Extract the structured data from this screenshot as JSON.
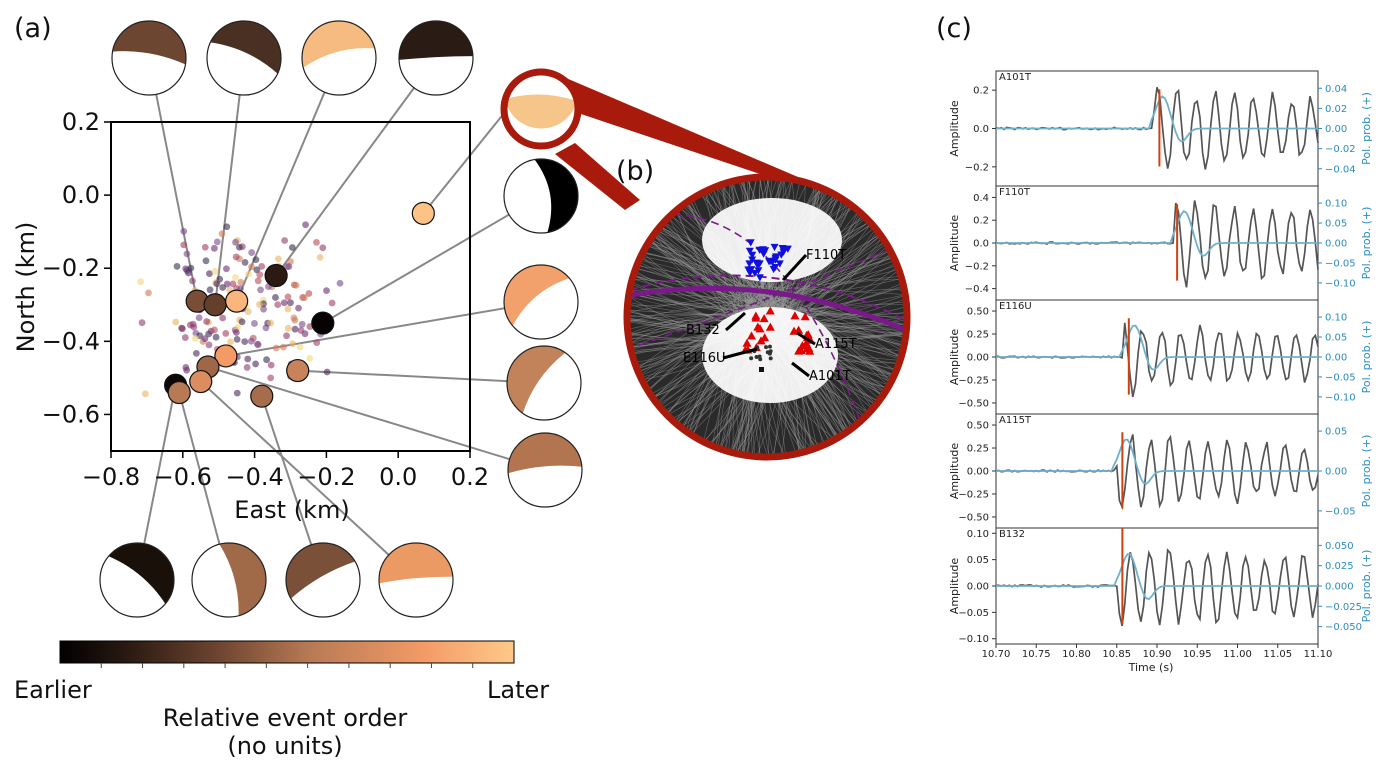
{
  "panels": {
    "a": "(a)",
    "b": "(b)",
    "c": "(c)"
  },
  "map": {
    "xlabel": "East (km)",
    "ylabel": "North (km)",
    "xticks": [
      "−0.8",
      "−0.6",
      "−0.4",
      "−0.2",
      "0.0",
      "0.2"
    ],
    "yticks": [
      "0.2",
      "0.0",
      "−0.2",
      "−0.4",
      "−0.6"
    ],
    "xlim": [
      -0.8,
      0.2
    ],
    "ylim": [
      -0.7,
      0.2
    ]
  },
  "colorbar": {
    "left": "Earlier",
    "right": "Later",
    "title_line1": "Relative event order",
    "title_line2": "(no units)"
  },
  "stereonet": {
    "stations": [
      "F110T",
      "B132",
      "E116U",
      "A115T",
      "A101T"
    ],
    "colors": {
      "up": "#e00000",
      "down": "#1010dd",
      "plane": "#7a1a8a",
      "rim": "#a81b0c"
    }
  },
  "traces": {
    "time_label": "Time (s)",
    "amp_label": "Amplitude",
    "prob_label": "Pol. prob. (+)",
    "xticks": [
      "10.70",
      "10.75",
      "10.80",
      "10.85",
      "10.90",
      "10.95",
      "11.00",
      "11.05",
      "11.10"
    ],
    "stations": [
      {
        "name": "A101T",
        "yticks": [
          "0.2",
          "0.0",
          "−0.2"
        ],
        "pticks": [
          "0.04",
          "0.02",
          "0.00",
          "−0.02",
          "−0.04"
        ]
      },
      {
        "name": "F110T",
        "yticks": [
          "0.4",
          "0.2",
          "0.0",
          "−0.2",
          "−0.4"
        ],
        "pticks": [
          "0.10",
          "0.05",
          "0.00",
          "−0.05",
          "−0.10"
        ]
      },
      {
        "name": "E116U",
        "yticks": [
          "0.50",
          "0.25",
          "0.00",
          "−0.25",
          "−0.50"
        ],
        "pticks": [
          "0.10",
          "0.05",
          "0.00",
          "−0.05",
          "−0.10"
        ]
      },
      {
        "name": "A115T",
        "yticks": [
          "0.50",
          "0.25",
          "0.00",
          "−0.25",
          "−0.50"
        ],
        "pticks": [
          "0.05",
          "0.00",
          "−0.05"
        ]
      },
      {
        "name": "B132",
        "yticks": [
          "0.10",
          "0.05",
          "0.00",
          "−0.05",
          "−0.10"
        ],
        "pticks": [
          "0.050",
          "0.025",
          "0.000",
          "−0.025",
          "−0.050"
        ]
      }
    ],
    "colors": {
      "wave": "#555555",
      "prob": "#6fb0cc",
      "pick": "#d04010"
    }
  },
  "chart_data": {
    "type": "scatter",
    "title": "",
    "xlabel": "East (km)",
    "ylabel": "North (km)",
    "xlim": [
      -0.8,
      0.2
    ],
    "ylim": [
      -0.7,
      0.2
    ],
    "large_events": [
      {
        "x": 0.07,
        "y": -0.05,
        "order": 0.97
      },
      {
        "x": -0.34,
        "y": -0.22,
        "order": 0.15
      },
      {
        "x": -0.56,
        "y": -0.29,
        "order": 0.38
      },
      {
        "x": -0.51,
        "y": -0.3,
        "order": 0.32
      },
      {
        "x": -0.45,
        "y": -0.29,
        "order": 0.92
      },
      {
        "x": -0.21,
        "y": -0.35,
        "order": 0.02
      },
      {
        "x": -0.48,
        "y": -0.44,
        "order": 0.8
      },
      {
        "x": -0.53,
        "y": -0.47,
        "order": 0.48
      },
      {
        "x": -0.28,
        "y": -0.48,
        "order": 0.62
      },
      {
        "x": -0.55,
        "y": -0.51,
        "order": 0.7
      },
      {
        "x": -0.62,
        "y": -0.52,
        "order": 0.05
      },
      {
        "x": -0.61,
        "y": -0.54,
        "order": 0.55
      },
      {
        "x": -0.38,
        "y": -0.55,
        "order": 0.5
      }
    ]
  }
}
